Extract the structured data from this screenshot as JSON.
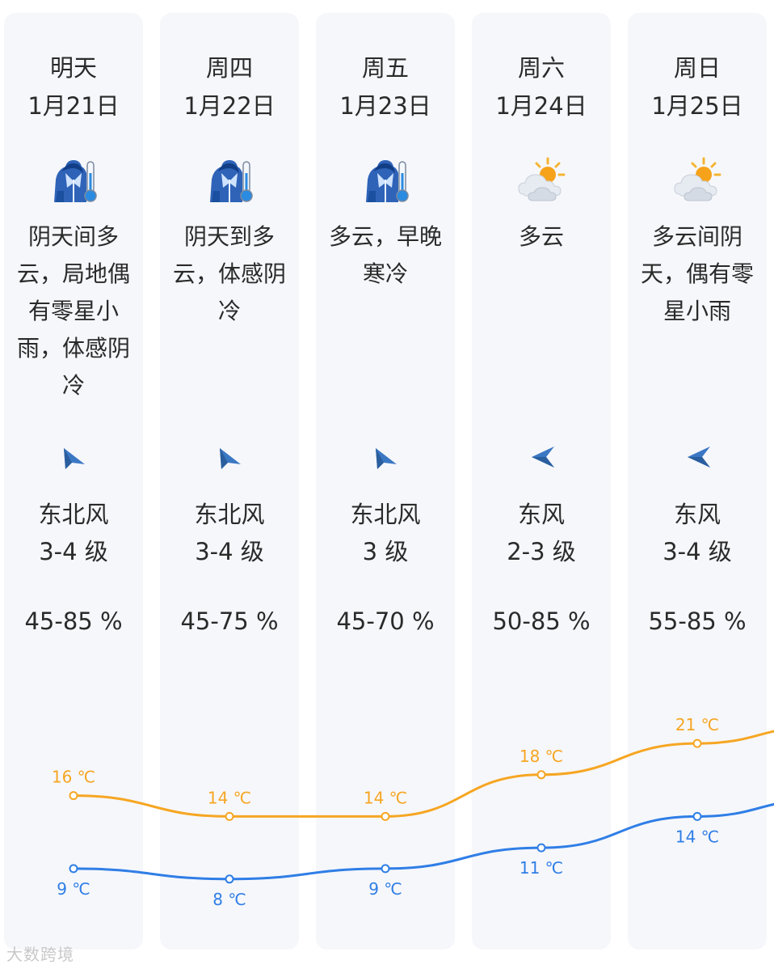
{
  "days": [
    {
      "weekday": "明天",
      "date": "1月21日",
      "icon": "cold-jacket-thermometer-icon",
      "desc": "阴天间多云，局地偶有零星小雨，体感阴冷",
      "wind_dir": "东北风",
      "wind_level": "3-4 级",
      "wind_icon": "wind-arrow-northeast-icon",
      "humidity": "45-85 %",
      "high": "16 ℃",
      "low": "9 ℃"
    },
    {
      "weekday": "周四",
      "date": "1月22日",
      "icon": "cold-jacket-thermometer-icon",
      "desc": "阴天到多云，体感阴冷",
      "wind_dir": "东北风",
      "wind_level": "3-4 级",
      "wind_icon": "wind-arrow-northeast-icon",
      "humidity": "45-75 %",
      "high": "14 ℃",
      "low": "8 ℃"
    },
    {
      "weekday": "周五",
      "date": "1月23日",
      "icon": "cold-jacket-thermometer-icon",
      "desc": "多云，早晚寒冷",
      "wind_dir": "东北风",
      "wind_level": "3 级",
      "wind_icon": "wind-arrow-northeast-icon",
      "humidity": "45-70 %",
      "high": "14 ℃",
      "low": "9 ℃"
    },
    {
      "weekday": "周六",
      "date": "1月24日",
      "icon": "partly-cloudy-icon",
      "desc": "多云",
      "wind_dir": "东风",
      "wind_level": "2-3 级",
      "wind_icon": "wind-arrow-east-icon",
      "humidity": "50-85 %",
      "high": "18 ℃",
      "low": "11 ℃"
    },
    {
      "weekday": "周日",
      "date": "1月25日",
      "icon": "partly-cloudy-icon",
      "desc": "多云间阴天，偶有零星小雨",
      "wind_dir": "东风",
      "wind_level": "3-4 级",
      "wind_icon": "wind-arrow-east-icon",
      "humidity": "55-85 %",
      "high": "21 ℃",
      "low": "14 ℃"
    }
  ],
  "chart_data": {
    "type": "line",
    "categories": [
      "明天",
      "周四",
      "周五",
      "周六",
      "周日"
    ],
    "series": [
      {
        "values": [
          16,
          14,
          14,
          18,
          21
        ],
        "color": "#f6a623"
      },
      {
        "values": [
          9,
          8,
          9,
          11,
          14
        ],
        "color": "#2f7ee6"
      }
    ],
    "unit": "℃"
  },
  "colors": {
    "high": "#f6a623",
    "low": "#2f7ee6",
    "card": "#f6f7fb",
    "wind_arrow": "#3b78c4"
  },
  "watermark": "大数跨境"
}
